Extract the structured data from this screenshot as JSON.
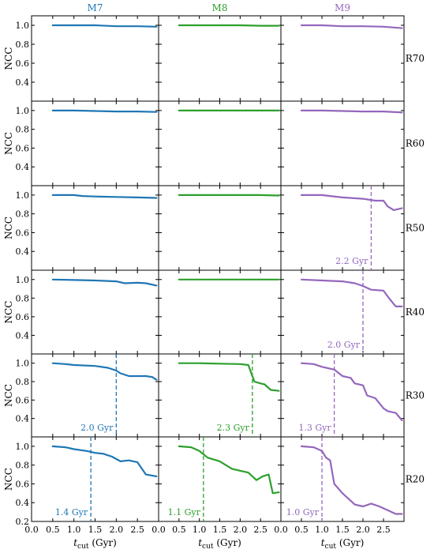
{
  "colors": {
    "M7": "#1f77b4",
    "M8": "#2ca02c",
    "M9": "#9467bd"
  },
  "columns": [
    "M7",
    "M8",
    "M9"
  ],
  "rows": [
    "R70",
    "R60",
    "R50",
    "R40",
    "R30",
    "R20"
  ],
  "ylabel": "NCC",
  "xlabel": {
    "italic": "t",
    "sub": "cut",
    "rest": " (Gyr)"
  },
  "chart_data": {
    "type": "line",
    "xlim": [
      0.0,
      3.0
    ],
    "ylim": [
      0.2,
      1.1
    ],
    "xticks": [
      "0.0",
      "0.5",
      "1.0",
      "1.5",
      "2.0",
      "2.5"
    ],
    "yticks": [
      "0.2",
      "0.4",
      "0.6",
      "0.8",
      "1.0"
    ],
    "panels": [
      {
        "row": "R70",
        "col": "M7",
        "x": [
          0.5,
          1.0,
          1.5,
          2.0,
          2.5,
          2.95
        ],
        "y": [
          1.0,
          1.0,
          1.0,
          0.99,
          0.99,
          0.985
        ]
      },
      {
        "row": "R70",
        "col": "M8",
        "x": [
          0.5,
          1.0,
          1.5,
          2.0,
          2.5,
          2.95
        ],
        "y": [
          1.0,
          1.0,
          1.0,
          1.0,
          0.995,
          0.995
        ]
      },
      {
        "row": "R70",
        "col": "M9",
        "x": [
          0.5,
          1.0,
          1.5,
          2.0,
          2.5,
          2.95
        ],
        "y": [
          1.0,
          1.0,
          0.99,
          0.99,
          0.985,
          0.97
        ]
      },
      {
        "row": "R60",
        "col": "M7",
        "x": [
          0.5,
          1.0,
          1.5,
          2.0,
          2.5,
          2.95
        ],
        "y": [
          1.0,
          1.0,
          0.995,
          0.99,
          0.99,
          0.985
        ]
      },
      {
        "row": "R60",
        "col": "M8",
        "x": [
          0.5,
          1.0,
          1.5,
          2.0,
          2.5,
          2.95
        ],
        "y": [
          1.0,
          1.0,
          1.0,
          1.0,
          1.0,
          1.0
        ]
      },
      {
        "row": "R60",
        "col": "M9",
        "x": [
          0.5,
          1.0,
          1.5,
          2.0,
          2.5,
          2.95
        ],
        "y": [
          1.0,
          1.0,
          0.995,
          0.99,
          0.99,
          0.98
        ]
      },
      {
        "row": "R50",
        "col": "M7",
        "x": [
          0.5,
          1.0,
          1.2,
          1.5,
          2.0,
          2.5,
          2.95
        ],
        "y": [
          1.0,
          1.0,
          0.99,
          0.985,
          0.98,
          0.975,
          0.97
        ]
      },
      {
        "row": "R50",
        "col": "M8",
        "x": [
          0.5,
          1.0,
          1.5,
          2.0,
          2.5,
          2.95
        ],
        "y": [
          1.0,
          1.0,
          1.0,
          1.0,
          1.0,
          0.995
        ]
      },
      {
        "row": "R50",
        "col": "M9",
        "x": [
          0.5,
          1.0,
          1.2,
          1.5,
          2.0,
          2.3,
          2.5,
          2.6,
          2.75,
          2.95
        ],
        "y": [
          1.0,
          1.0,
          0.99,
          0.975,
          0.96,
          0.94,
          0.94,
          0.88,
          0.84,
          0.86
        ]
      },
      {
        "row": "R40",
        "col": "M7",
        "x": [
          0.5,
          1.0,
          1.5,
          2.0,
          2.2,
          2.5,
          2.7,
          2.95
        ],
        "y": [
          1.0,
          0.995,
          0.99,
          0.98,
          0.96,
          0.965,
          0.96,
          0.935
        ]
      },
      {
        "row": "R40",
        "col": "M8",
        "x": [
          0.5,
          1.0,
          1.5,
          2.0,
          2.5,
          2.95
        ],
        "y": [
          1.0,
          1.0,
          1.0,
          1.0,
          1.0,
          1.0
        ]
      },
      {
        "row": "R40",
        "col": "M9",
        "x": [
          0.5,
          1.0,
          1.5,
          1.8,
          2.0,
          2.2,
          2.5,
          2.65,
          2.8,
          2.95
        ],
        "y": [
          1.0,
          0.99,
          0.98,
          0.96,
          0.93,
          0.89,
          0.88,
          0.79,
          0.71,
          0.71
        ]
      },
      {
        "row": "R30",
        "col": "M7",
        "x": [
          0.5,
          0.8,
          1.0,
          1.5,
          1.8,
          2.0,
          2.1,
          2.3,
          2.5,
          2.7,
          2.85,
          2.95
        ],
        "y": [
          1.0,
          0.99,
          0.98,
          0.97,
          0.95,
          0.92,
          0.89,
          0.86,
          0.86,
          0.86,
          0.85,
          0.82
        ]
      },
      {
        "row": "R30",
        "col": "M8",
        "x": [
          0.5,
          1.0,
          1.5,
          2.0,
          2.2,
          2.35,
          2.5,
          2.6,
          2.75,
          2.95
        ],
        "y": [
          1.0,
          1.0,
          0.995,
          0.99,
          0.98,
          0.8,
          0.78,
          0.77,
          0.71,
          0.7
        ]
      },
      {
        "row": "R30",
        "col": "M9",
        "x": [
          0.5,
          0.8,
          1.0,
          1.3,
          1.5,
          1.7,
          1.8,
          2.0,
          2.1,
          2.3,
          2.5,
          2.6,
          2.8,
          2.95
        ],
        "y": [
          1.0,
          0.99,
          0.96,
          0.93,
          0.86,
          0.84,
          0.78,
          0.76,
          0.65,
          0.62,
          0.51,
          0.48,
          0.46,
          0.38
        ]
      },
      {
        "row": "R20",
        "col": "M7",
        "x": [
          0.5,
          0.8,
          1.0,
          1.3,
          1.5,
          1.7,
          1.9,
          2.1,
          2.3,
          2.5,
          2.7,
          2.95
        ],
        "y": [
          1.0,
          0.99,
          0.97,
          0.95,
          0.93,
          0.92,
          0.89,
          0.84,
          0.85,
          0.83,
          0.7,
          0.68
        ]
      },
      {
        "row": "R20",
        "col": "M8",
        "x": [
          0.5,
          0.8,
          1.0,
          1.2,
          1.5,
          1.8,
          2.0,
          2.2,
          2.4,
          2.55,
          2.7,
          2.8,
          2.95
        ],
        "y": [
          1.0,
          0.99,
          0.95,
          0.88,
          0.84,
          0.76,
          0.74,
          0.72,
          0.64,
          0.68,
          0.7,
          0.5,
          0.51
        ]
      },
      {
        "row": "R20",
        "col": "M9",
        "x": [
          0.5,
          0.8,
          1.0,
          1.1,
          1.2,
          1.3,
          1.5,
          1.7,
          1.8,
          2.0,
          2.2,
          2.4,
          2.6,
          2.8,
          2.95
        ],
        "y": [
          1.0,
          0.99,
          0.95,
          0.88,
          0.85,
          0.6,
          0.5,
          0.42,
          0.38,
          0.36,
          0.39,
          0.36,
          0.32,
          0.28,
          0.28
        ]
      }
    ],
    "annotations": [
      {
        "row": "R50",
        "col": "M9",
        "x": 2.2,
        "label": "2.2 Gyr"
      },
      {
        "row": "R40",
        "col": "M9",
        "x": 2.0,
        "label": "2.0 Gyr"
      },
      {
        "row": "R30",
        "col": "M7",
        "x": 2.0,
        "label": "2.0 Gyr"
      },
      {
        "row": "R30",
        "col": "M8",
        "x": 2.3,
        "label": "2.3 Gyr"
      },
      {
        "row": "R30",
        "col": "M9",
        "x": 1.3,
        "label": "1.3 Gyr"
      },
      {
        "row": "R20",
        "col": "M7",
        "x": 1.4,
        "label": "1.4 Gyr"
      },
      {
        "row": "R20",
        "col": "M8",
        "x": 1.1,
        "label": "1.1 Gyr"
      },
      {
        "row": "R20",
        "col": "M9",
        "x": 1.0,
        "label": "1.0 Gyr"
      }
    ]
  }
}
